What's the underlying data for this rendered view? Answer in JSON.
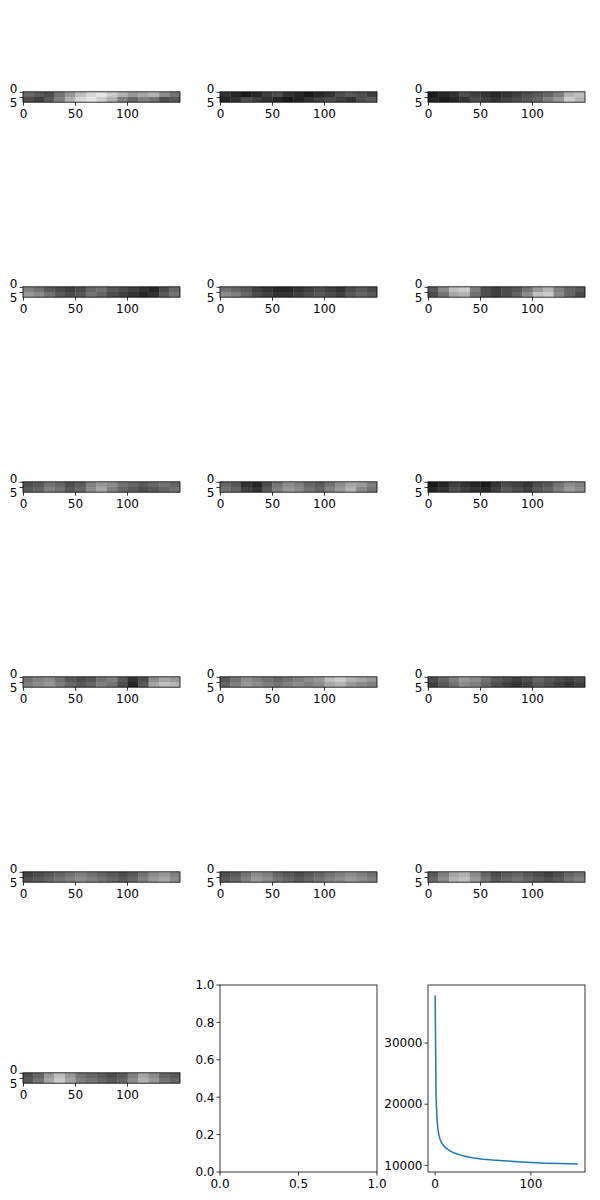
{
  "chart_data": [
    {
      "type": "image",
      "xlim": [
        -0.5,
        150.5
      ],
      "ylim": [
        9.5,
        -0.5
      ],
      "xticks": [
        0,
        50,
        100
      ],
      "yticks": [
        0,
        5
      ],
      "zlim": [
        0,
        1
      ],
      "cells": [
        [
          0.4,
          0.35,
          0.3,
          0.45,
          0.6,
          0.75,
          0.85,
          0.9,
          0.8,
          0.7,
          0.6,
          0.65,
          0.7,
          0.55,
          0.45
        ],
        [
          0.3,
          0.25,
          0.35,
          0.5,
          0.7,
          0.85,
          0.9,
          0.8,
          0.7,
          0.5,
          0.4,
          0.5,
          0.45,
          0.3,
          0.35
        ]
      ]
    },
    {
      "type": "image",
      "xlim": [
        -0.5,
        150.5
      ],
      "ylim": [
        9.5,
        -0.5
      ],
      "xticks": [
        0,
        50,
        100
      ],
      "yticks": [
        0,
        5
      ],
      "zlim": [
        0,
        1
      ],
      "cells": [
        [
          0.2,
          0.15,
          0.1,
          0.15,
          0.25,
          0.3,
          0.2,
          0.15,
          0.1,
          0.15,
          0.2,
          0.3,
          0.35,
          0.3,
          0.25
        ],
        [
          0.15,
          0.2,
          0.3,
          0.25,
          0.2,
          0.15,
          0.1,
          0.15,
          0.2,
          0.25,
          0.3,
          0.25,
          0.2,
          0.3,
          0.35
        ]
      ]
    },
    {
      "type": "image",
      "xlim": [
        -0.5,
        150.5
      ],
      "ylim": [
        9.5,
        -0.5
      ],
      "xticks": [
        0,
        50,
        100
      ],
      "yticks": [
        0,
        5
      ],
      "zlim": [
        0,
        1
      ],
      "cells": [
        [
          0.1,
          0.15,
          0.2,
          0.3,
          0.25,
          0.2,
          0.15,
          0.2,
          0.25,
          0.3,
          0.35,
          0.4,
          0.5,
          0.7,
          0.75
        ],
        [
          0.15,
          0.1,
          0.15,
          0.2,
          0.3,
          0.25,
          0.2,
          0.25,
          0.3,
          0.35,
          0.4,
          0.5,
          0.6,
          0.8,
          0.7
        ]
      ]
    },
    {
      "type": "image",
      "xlim": [
        -0.5,
        150.5
      ],
      "ylim": [
        9.5,
        -0.5
      ],
      "xticks": [
        0,
        50,
        100
      ],
      "yticks": [
        0,
        5
      ],
      "zlim": [
        0,
        1
      ],
      "cells": [
        [
          0.5,
          0.45,
          0.35,
          0.3,
          0.25,
          0.3,
          0.4,
          0.45,
          0.35,
          0.3,
          0.25,
          0.2,
          0.15,
          0.3,
          0.4
        ],
        [
          0.6,
          0.55,
          0.45,
          0.35,
          0.3,
          0.35,
          0.45,
          0.4,
          0.3,
          0.25,
          0.2,
          0.15,
          0.2,
          0.35,
          0.45
        ]
      ]
    },
    {
      "type": "image",
      "xlim": [
        -0.5,
        150.5
      ],
      "ylim": [
        9.5,
        -0.5
      ],
      "xticks": [
        0,
        50,
        100
      ],
      "yticks": [
        0,
        5
      ],
      "zlim": [
        0,
        1
      ],
      "cells": [
        [
          0.45,
          0.4,
          0.35,
          0.25,
          0.2,
          0.15,
          0.15,
          0.2,
          0.25,
          0.3,
          0.25,
          0.2,
          0.3,
          0.35,
          0.3
        ],
        [
          0.55,
          0.5,
          0.4,
          0.3,
          0.25,
          0.2,
          0.2,
          0.25,
          0.3,
          0.35,
          0.3,
          0.25,
          0.35,
          0.4,
          0.35
        ]
      ]
    },
    {
      "type": "image",
      "xlim": [
        -0.5,
        150.5
      ],
      "ylim": [
        9.5,
        -0.5
      ],
      "xticks": [
        0,
        50,
        100
      ],
      "yticks": [
        0,
        5
      ],
      "zlim": [
        0,
        1
      ],
      "cells": [
        [
          0.35,
          0.55,
          0.75,
          0.8,
          0.5,
          0.3,
          0.25,
          0.3,
          0.35,
          0.45,
          0.6,
          0.7,
          0.5,
          0.4,
          0.35
        ],
        [
          0.3,
          0.45,
          0.65,
          0.7,
          0.45,
          0.3,
          0.25,
          0.3,
          0.4,
          0.55,
          0.75,
          0.8,
          0.55,
          0.4,
          0.3
        ]
      ]
    },
    {
      "type": "image",
      "xlim": [
        -0.5,
        150.5
      ],
      "ylim": [
        9.5,
        -0.5
      ],
      "xticks": [
        0,
        50,
        100
      ],
      "yticks": [
        0,
        5
      ],
      "zlim": [
        0,
        1
      ],
      "cells": [
        [
          0.3,
          0.35,
          0.45,
          0.4,
          0.3,
          0.35,
          0.5,
          0.6,
          0.55,
          0.45,
          0.4,
          0.35,
          0.4,
          0.45,
          0.4
        ],
        [
          0.35,
          0.4,
          0.5,
          0.45,
          0.35,
          0.4,
          0.55,
          0.65,
          0.5,
          0.4,
          0.35,
          0.3,
          0.35,
          0.4,
          0.45
        ]
      ]
    },
    {
      "type": "image",
      "xlim": [
        -0.5,
        150.5
      ],
      "ylim": [
        9.5,
        -0.5
      ],
      "xticks": [
        0,
        50,
        100
      ],
      "yticks": [
        0,
        5
      ],
      "zlim": [
        0,
        1
      ],
      "cells": [
        [
          0.4,
          0.35,
          0.2,
          0.15,
          0.3,
          0.45,
          0.55,
          0.5,
          0.4,
          0.35,
          0.45,
          0.55,
          0.65,
          0.6,
          0.5
        ],
        [
          0.45,
          0.4,
          0.25,
          0.2,
          0.35,
          0.5,
          0.6,
          0.55,
          0.45,
          0.4,
          0.5,
          0.6,
          0.7,
          0.55,
          0.45
        ]
      ]
    },
    {
      "type": "image",
      "xlim": [
        -0.5,
        150.5
      ],
      "ylim": [
        9.5,
        -0.5
      ],
      "xticks": [
        0,
        50,
        100
      ],
      "yticks": [
        0,
        5
      ],
      "zlim": [
        0,
        1
      ],
      "cells": [
        [
          0.1,
          0.15,
          0.25,
          0.2,
          0.15,
          0.1,
          0.2,
          0.3,
          0.25,
          0.2,
          0.3,
          0.35,
          0.45,
          0.55,
          0.5
        ],
        [
          0.15,
          0.2,
          0.3,
          0.25,
          0.2,
          0.15,
          0.25,
          0.35,
          0.3,
          0.25,
          0.35,
          0.4,
          0.5,
          0.6,
          0.55
        ]
      ]
    },
    {
      "type": "image",
      "xlim": [
        -0.5,
        150.5
      ],
      "ylim": [
        9.5,
        -0.5
      ],
      "xticks": [
        0,
        50,
        100
      ],
      "yticks": [
        0,
        5
      ],
      "zlim": [
        0,
        1
      ],
      "cells": [
        [
          0.45,
          0.5,
          0.55,
          0.45,
          0.35,
          0.3,
          0.35,
          0.45,
          0.5,
          0.35,
          0.2,
          0.3,
          0.55,
          0.65,
          0.6
        ],
        [
          0.5,
          0.55,
          0.6,
          0.5,
          0.4,
          0.35,
          0.4,
          0.5,
          0.45,
          0.3,
          0.15,
          0.35,
          0.65,
          0.75,
          0.7
        ]
      ]
    },
    {
      "type": "image",
      "xlim": [
        -0.5,
        150.5
      ],
      "ylim": [
        9.5,
        -0.5
      ],
      "xticks": [
        0,
        50,
        100
      ],
      "yticks": [
        0,
        5
      ],
      "zlim": [
        0,
        1
      ],
      "cells": [
        [
          0.35,
          0.45,
          0.55,
          0.5,
          0.45,
          0.4,
          0.45,
          0.5,
          0.55,
          0.6,
          0.75,
          0.8,
          0.7,
          0.65,
          0.6
        ],
        [
          0.4,
          0.5,
          0.6,
          0.55,
          0.5,
          0.45,
          0.5,
          0.55,
          0.5,
          0.55,
          0.65,
          0.7,
          0.6,
          0.55,
          0.5
        ]
      ]
    },
    {
      "type": "image",
      "xlim": [
        -0.5,
        150.5
      ],
      "ylim": [
        9.5,
        -0.5
      ],
      "xticks": [
        0,
        50,
        100
      ],
      "yticks": [
        0,
        5
      ],
      "zlim": [
        0,
        1
      ],
      "cells": [
        [
          0.3,
          0.4,
          0.5,
          0.6,
          0.55,
          0.45,
          0.35,
          0.3,
          0.25,
          0.3,
          0.4,
          0.35,
          0.3,
          0.25,
          0.3
        ],
        [
          0.25,
          0.35,
          0.45,
          0.55,
          0.5,
          0.4,
          0.3,
          0.25,
          0.2,
          0.25,
          0.35,
          0.3,
          0.25,
          0.2,
          0.25
        ]
      ]
    },
    {
      "type": "image",
      "xlim": [
        -0.5,
        150.5
      ],
      "ylim": [
        9.5,
        -0.5
      ],
      "xticks": [
        0,
        50,
        100
      ],
      "yticks": [
        0,
        5
      ],
      "zlim": [
        0,
        1
      ],
      "cells": [
        [
          0.25,
          0.3,
          0.35,
          0.4,
          0.45,
          0.5,
          0.45,
          0.4,
          0.35,
          0.3,
          0.35,
          0.45,
          0.55,
          0.6,
          0.5
        ],
        [
          0.3,
          0.35,
          0.4,
          0.45,
          0.5,
          0.55,
          0.5,
          0.45,
          0.4,
          0.35,
          0.4,
          0.5,
          0.6,
          0.65,
          0.55
        ]
      ]
    },
    {
      "type": "image",
      "xlim": [
        -0.5,
        150.5
      ],
      "ylim": [
        9.5,
        -0.5
      ],
      "xticks": [
        0,
        50,
        100
      ],
      "yticks": [
        0,
        5
      ],
      "zlim": [
        0,
        1
      ],
      "cells": [
        [
          0.3,
          0.35,
          0.45,
          0.55,
          0.5,
          0.4,
          0.35,
          0.3,
          0.35,
          0.4,
          0.45,
          0.5,
          0.55,
          0.5,
          0.45
        ],
        [
          0.35,
          0.4,
          0.5,
          0.6,
          0.55,
          0.45,
          0.4,
          0.35,
          0.4,
          0.45,
          0.5,
          0.55,
          0.6,
          0.55,
          0.5
        ]
      ]
    },
    {
      "type": "image",
      "xlim": [
        -0.5,
        150.5
      ],
      "ylim": [
        9.5,
        -0.5
      ],
      "xticks": [
        0,
        50,
        100
      ],
      "yticks": [
        0,
        5
      ],
      "zlim": [
        0,
        1
      ],
      "cells": [
        [
          0.35,
          0.5,
          0.65,
          0.7,
          0.55,
          0.4,
          0.3,
          0.35,
          0.4,
          0.35,
          0.3,
          0.25,
          0.3,
          0.4,
          0.45
        ],
        [
          0.4,
          0.55,
          0.7,
          0.75,
          0.6,
          0.45,
          0.35,
          0.4,
          0.45,
          0.4,
          0.35,
          0.3,
          0.35,
          0.45,
          0.5
        ]
      ]
    },
    {
      "type": "image",
      "xlim": [
        -0.5,
        150.5
      ],
      "ylim": [
        9.5,
        -0.5
      ],
      "xticks": [
        0,
        50,
        100
      ],
      "yticks": [
        0,
        5
      ],
      "zlim": [
        0,
        1
      ],
      "cells": [
        [
          0.3,
          0.4,
          0.6,
          0.75,
          0.6,
          0.45,
          0.4,
          0.35,
          0.3,
          0.35,
          0.5,
          0.65,
          0.55,
          0.4,
          0.35
        ],
        [
          0.35,
          0.45,
          0.65,
          0.8,
          0.65,
          0.5,
          0.45,
          0.4,
          0.35,
          0.4,
          0.55,
          0.7,
          0.6,
          0.45,
          0.4
        ]
      ]
    },
    {
      "type": "blank",
      "xlim": [
        0,
        1
      ],
      "ylim": [
        0,
        1
      ],
      "xticks": [
        {
          "value": 0,
          "label": "0.0"
        },
        {
          "value": 0.5,
          "label": "0.5"
        },
        {
          "value": 1,
          "label": "1.0"
        }
      ],
      "yticks": [
        {
          "value": 0,
          "label": "0.0"
        },
        {
          "value": 0.2,
          "label": "0.2"
        },
        {
          "value": 0.4,
          "label": "0.4"
        },
        {
          "value": 0.6,
          "label": "0.6"
        },
        {
          "value": 0.8,
          "label": "0.8"
        },
        {
          "value": 1,
          "label": "1.0"
        }
      ]
    },
    {
      "type": "line",
      "color": "#1f77b4",
      "xlim": [
        -7.45,
        156.45
      ],
      "ylim": [
        8900,
        39500
      ],
      "xticks": [
        0,
        100
      ],
      "yticks": [
        10000,
        20000,
        30000
      ],
      "x": [
        0,
        1,
        2,
        3,
        4,
        5,
        7,
        10,
        15,
        20,
        30,
        40,
        50,
        60,
        75,
        90,
        100,
        115,
        130,
        149
      ],
      "values": [
        37800,
        21000,
        17500,
        15800,
        14900,
        14300,
        13600,
        13000,
        12400,
        12000,
        11500,
        11200,
        11000,
        10850,
        10700,
        10550,
        10450,
        10350,
        10280,
        10200
      ]
    }
  ]
}
